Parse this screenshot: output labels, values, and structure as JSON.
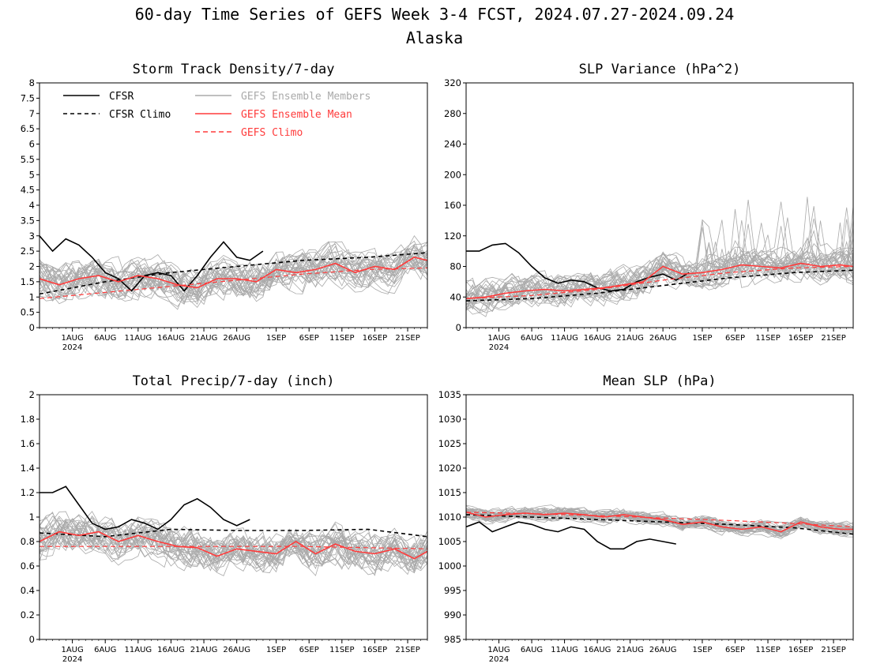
{
  "figure": {
    "title": "60-day Time Series of GEFS Week 3-4 FCST, 2024.07.27-2024.09.24",
    "subtitle": "Alaska"
  },
  "legend": {
    "cfsr": "CFSR",
    "cfsr_climo": "CFSR Climo",
    "members": "GEFS Ensemble Members",
    "mean": "GEFS Ensemble Mean",
    "gefs_climo": "GEFS Climo"
  },
  "colors": {
    "cfsr": "#000000",
    "members": "#aaaaaa",
    "mean": "#ff3b3b",
    "gefs_climo": "#ff3b3b"
  },
  "x_axis": {
    "start_date": "2024-07-27",
    "days": 60,
    "tick_labels": [
      "1AUG",
      "6AUG",
      "11AUG",
      "16AUG",
      "21AUG",
      "26AUG",
      "1SEP",
      "6SEP",
      "11SEP",
      "16SEP",
      "21SEP"
    ],
    "year_label": "2024"
  },
  "chart_data": [
    {
      "type": "line",
      "title": "Storm Track Density/7-day",
      "ylim": [
        0,
        8
      ],
      "yticks": [
        "0",
        "0.5",
        "1",
        "1.5",
        "2",
        "2.5",
        "3",
        "3.5",
        "4",
        "4.5",
        "5",
        "5.5",
        "6",
        "6.5",
        "7",
        "7.5",
        "8"
      ],
      "series": [
        {
          "name": "CFSR",
          "days": [
            0,
            2,
            4,
            6,
            8,
            10,
            12,
            14,
            16,
            18,
            20,
            22,
            24,
            26,
            28,
            30,
            32,
            34,
            36,
            38,
            40,
            42
          ],
          "values": [
            3.0,
            2.5,
            2.9,
            2.7,
            2.3,
            1.8,
            1.6,
            1.2,
            1.7,
            1.8,
            1.7,
            1.2,
            1.7,
            2.3,
            2.8,
            2.3,
            2.2,
            2.5,
            null,
            null,
            null,
            null
          ]
        },
        {
          "name": "CFSR Climo",
          "days": [
            0,
            10,
            20,
            30,
            40,
            50,
            59
          ],
          "values": [
            1.1,
            1.5,
            1.8,
            2.0,
            2.2,
            2.3,
            2.45
          ]
        },
        {
          "name": "GEFS Ensemble Mean",
          "days": [
            0,
            3,
            6,
            9,
            12,
            15,
            18,
            21,
            24,
            27,
            30,
            33,
            36,
            39,
            42,
            45,
            48,
            51,
            54,
            57,
            59
          ],
          "values": [
            1.6,
            1.4,
            1.6,
            1.7,
            1.5,
            1.7,
            1.6,
            1.4,
            1.3,
            1.6,
            1.6,
            1.5,
            1.9,
            1.8,
            1.9,
            2.1,
            1.8,
            2.0,
            1.9,
            2.3,
            2.2
          ]
        },
        {
          "name": "GEFS Climo",
          "days": [
            0,
            10,
            20,
            30,
            40,
            50,
            59
          ],
          "values": [
            0.95,
            1.15,
            1.35,
            1.55,
            1.75,
            1.9,
            1.95
          ]
        }
      ]
    },
    {
      "type": "line",
      "title": "SLP Variance (hPa^2)",
      "ylim": [
        0,
        320
      ],
      "yticks": [
        "0",
        "40",
        "80",
        "120",
        "160",
        "200",
        "240",
        "280",
        "320"
      ],
      "series": [
        {
          "name": "CFSR",
          "days": [
            0,
            2,
            4,
            6,
            8,
            10,
            12,
            14,
            16,
            18,
            20,
            22,
            24,
            26,
            28,
            30,
            32,
            34
          ],
          "values": [
            100,
            100,
            108,
            110,
            98,
            80,
            65,
            58,
            62,
            60,
            52,
            48,
            50,
            60,
            66,
            70,
            62,
            72
          ]
        },
        {
          "name": "CFSR Climo",
          "days": [
            0,
            10,
            20,
            30,
            40,
            50,
            59
          ],
          "values": [
            35,
            38,
            45,
            55,
            65,
            72,
            75
          ]
        },
        {
          "name": "GEFS Ensemble Mean",
          "days": [
            0,
            3,
            6,
            9,
            12,
            15,
            18,
            21,
            24,
            27,
            30,
            33,
            36,
            39,
            42,
            45,
            48,
            51,
            54,
            57,
            59
          ],
          "values": [
            38,
            40,
            45,
            48,
            50,
            48,
            50,
            52,
            56,
            60,
            80,
            70,
            72,
            76,
            82,
            80,
            78,
            84,
            80,
            82,
            80
          ]
        },
        {
          "name": "GEFS Climo",
          "days": [
            0,
            10,
            20,
            30,
            40,
            50,
            59
          ],
          "values": [
            38,
            42,
            50,
            62,
            72,
            78,
            80
          ]
        }
      ]
    },
    {
      "type": "line",
      "title": "Total Precip/7-day (inch)",
      "ylim": [
        0,
        2
      ],
      "yticks": [
        "0",
        "0.2",
        "0.4",
        "0.6",
        "0.8",
        "1",
        "1.2",
        "1.4",
        "1.6",
        "1.8",
        "2"
      ],
      "series": [
        {
          "name": "CFSR",
          "days": [
            0,
            2,
            4,
            6,
            8,
            10,
            12,
            14,
            16,
            18,
            20,
            22,
            24,
            26,
            28,
            30,
            32,
            34
          ],
          "values": [
            1.2,
            1.2,
            1.25,
            1.1,
            0.95,
            0.9,
            0.92,
            0.98,
            0.95,
            0.9,
            0.98,
            1.1,
            1.15,
            1.08,
            0.98,
            0.93,
            0.98,
            null
          ]
        },
        {
          "name": "CFSR Climo",
          "days": [
            0,
            10,
            20,
            30,
            40,
            50,
            59
          ],
          "values": [
            0.87,
            0.84,
            0.9,
            0.89,
            0.89,
            0.9,
            0.84
          ]
        },
        {
          "name": "GEFS Ensemble Mean",
          "days": [
            0,
            3,
            6,
            9,
            12,
            15,
            18,
            21,
            24,
            27,
            30,
            33,
            36,
            39,
            42,
            45,
            48,
            51,
            54,
            57,
            59
          ],
          "values": [
            0.8,
            0.88,
            0.85,
            0.88,
            0.8,
            0.85,
            0.8,
            0.76,
            0.75,
            0.68,
            0.74,
            0.72,
            0.7,
            0.8,
            0.7,
            0.78,
            0.72,
            0.7,
            0.74,
            0.66,
            0.72
          ]
        },
        {
          "name": "GEFS Climo",
          "days": [
            0,
            10,
            20,
            30,
            40,
            50,
            59
          ],
          "values": [
            0.76,
            0.76,
            0.76,
            0.76,
            0.76,
            0.75,
            0.74
          ]
        }
      ]
    },
    {
      "type": "line",
      "title": "Mean SLP (hPa)",
      "ylim": [
        985,
        1035
      ],
      "yticks": [
        "985",
        "990",
        "995",
        "1000",
        "1005",
        "1010",
        "1015",
        "1020",
        "1025",
        "1030",
        "1035"
      ],
      "series": [
        {
          "name": "CFSR",
          "days": [
            0,
            2,
            4,
            6,
            8,
            10,
            12,
            14,
            16,
            18,
            20,
            22,
            24,
            26,
            28,
            30,
            32,
            34
          ],
          "values": [
            1008,
            1009,
            1007,
            1008,
            1009,
            1008.5,
            1007.5,
            1007,
            1008,
            1007.5,
            1005,
            1003.5,
            1003.5,
            1005,
            1005.5,
            1005,
            1004.5,
            null
          ]
        },
        {
          "name": "CFSR Climo",
          "days": [
            0,
            10,
            20,
            30,
            40,
            50,
            59
          ],
          "values": [
            1010.5,
            1010,
            1009.5,
            1009,
            1008.5,
            1007.8,
            1006.5
          ]
        },
        {
          "name": "GEFS Ensemble Mean",
          "days": [
            0,
            3,
            6,
            9,
            12,
            15,
            18,
            21,
            24,
            27,
            30,
            33,
            36,
            39,
            42,
            45,
            48,
            51,
            54,
            57,
            59
          ],
          "values": [
            1011,
            1010,
            1010.5,
            1010.8,
            1010.5,
            1010.8,
            1010.5,
            1010,
            1010.5,
            1010,
            1009.5,
            1008.5,
            1009,
            1008,
            1007.5,
            1008,
            1007,
            1009,
            1008,
            1007.5,
            1007.5
          ]
        },
        {
          "name": "GEFS Climo",
          "days": [
            0,
            10,
            20,
            30,
            40,
            50,
            59
          ],
          "values": [
            1011,
            1010.7,
            1010.3,
            1009.8,
            1009.3,
            1008.7,
            1008
          ]
        }
      ]
    }
  ]
}
